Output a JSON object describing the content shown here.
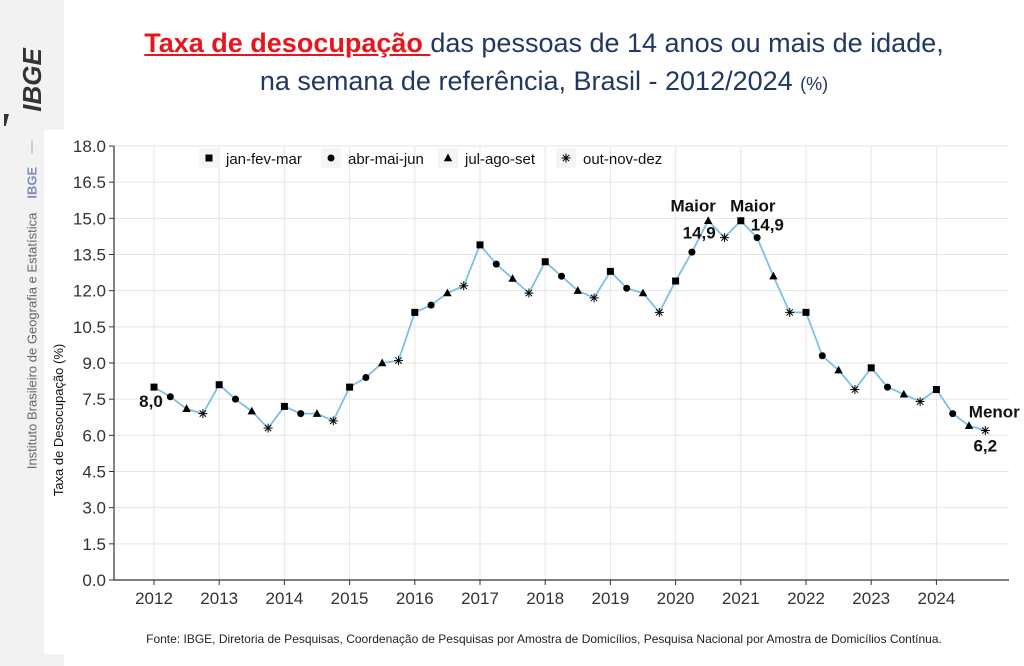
{
  "sidebar": {
    "logo_text": "IBGE",
    "institute_name": "Instituto Brasileiro de Geografia e Estatística",
    "institute_short": "IBGE"
  },
  "title": {
    "highlight": "Taxa de desocupação ",
    "line1_rest": "das pessoas de 14 anos ou mais de idade,",
    "line2": "na semana de referência, Brasil - 2012/2024",
    "unit": "(%)"
  },
  "footer": "Fonte: IBGE, Diretoria de Pesquisas, Coordenação de Pesquisas por Amostra de Domicílios, Pesquisa Nacional por Amostra de Domicílios Contínua.",
  "colors": {
    "line": "#7cc0e6",
    "title": "#1f3864",
    "highlight": "#e8151c",
    "grid": "#e5e5e5"
  },
  "chart_data": {
    "type": "line",
    "title": "",
    "xlabel": "",
    "ylabel": "Taxa de Desocupação (%)",
    "ylim": [
      0,
      18
    ],
    "yticks": [
      "0.0",
      "1.5",
      "3.0",
      "4.5",
      "6.0",
      "7.5",
      "9.0",
      "10.5",
      "12.0",
      "13.5",
      "15.0",
      "16.5",
      "18.0"
    ],
    "xticks": [
      "2012",
      "2013",
      "2014",
      "2015",
      "2016",
      "2017",
      "2018",
      "2019",
      "2020",
      "2021",
      "2022",
      "2023",
      "2024"
    ],
    "grid": true,
    "legend_position": "top-left",
    "legend": [
      {
        "name": "jan-fev-mar",
        "marker": "square"
      },
      {
        "name": "abr-mai-jun",
        "marker": "circle"
      },
      {
        "name": "jul-ago-set",
        "marker": "triangle"
      },
      {
        "name": "out-nov-dez",
        "marker": "asterisk"
      }
    ],
    "points": [
      {
        "x": "2012 T1",
        "y": 8.0
      },
      {
        "x": "2012 T2",
        "y": 7.6
      },
      {
        "x": "2012 T3",
        "y": 7.1
      },
      {
        "x": "2012 T4",
        "y": 6.9
      },
      {
        "x": "2013 T1",
        "y": 8.1
      },
      {
        "x": "2013 T2",
        "y": 7.5
      },
      {
        "x": "2013 T3",
        "y": 7.0
      },
      {
        "x": "2013 T4",
        "y": 6.3
      },
      {
        "x": "2014 T1",
        "y": 7.2
      },
      {
        "x": "2014 T2",
        "y": 6.9
      },
      {
        "x": "2014 T3",
        "y": 6.9
      },
      {
        "x": "2014 T4",
        "y": 6.6
      },
      {
        "x": "2015 T1",
        "y": 8.0
      },
      {
        "x": "2015 T2",
        "y": 8.4
      },
      {
        "x": "2015 T3",
        "y": 9.0
      },
      {
        "x": "2015 T4",
        "y": 9.1
      },
      {
        "x": "2016 T1",
        "y": 11.1
      },
      {
        "x": "2016 T2",
        "y": 11.4
      },
      {
        "x": "2016 T3",
        "y": 11.9
      },
      {
        "x": "2016 T4",
        "y": 12.2
      },
      {
        "x": "2017 T1",
        "y": 13.9
      },
      {
        "x": "2017 T2",
        "y": 13.1
      },
      {
        "x": "2017 T3",
        "y": 12.5
      },
      {
        "x": "2017 T4",
        "y": 11.9
      },
      {
        "x": "2018 T1",
        "y": 13.2
      },
      {
        "x": "2018 T2",
        "y": 12.6
      },
      {
        "x": "2018 T3",
        "y": 12.0
      },
      {
        "x": "2018 T4",
        "y": 11.7
      },
      {
        "x": "2019 T1",
        "y": 12.8
      },
      {
        "x": "2019 T2",
        "y": 12.1
      },
      {
        "x": "2019 T3",
        "y": 11.9
      },
      {
        "x": "2019 T4",
        "y": 11.1
      },
      {
        "x": "2020 T1",
        "y": 12.4
      },
      {
        "x": "2020 T2",
        "y": 13.6
      },
      {
        "x": "2020 T3",
        "y": 14.9
      },
      {
        "x": "2020 T4",
        "y": 14.2
      },
      {
        "x": "2021 T1",
        "y": 14.9
      },
      {
        "x": "2021 T2",
        "y": 14.2
      },
      {
        "x": "2021 T3",
        "y": 12.6
      },
      {
        "x": "2021 T4",
        "y": 11.1
      },
      {
        "x": "2022 T1",
        "y": 11.1
      },
      {
        "x": "2022 T2",
        "y": 9.3
      },
      {
        "x": "2022 T3",
        "y": 8.7
      },
      {
        "x": "2022 T4",
        "y": 7.9
      },
      {
        "x": "2023 T1",
        "y": 8.8
      },
      {
        "x": "2023 T2",
        "y": 8.0
      },
      {
        "x": "2023 T3",
        "y": 7.7
      },
      {
        "x": "2023 T4",
        "y": 7.4
      },
      {
        "x": "2024 T1",
        "y": 7.9
      },
      {
        "x": "2024 T2",
        "y": 6.9
      },
      {
        "x": "2024 T3",
        "y": 6.4
      },
      {
        "x": "2024 T4",
        "y": 6.2
      }
    ],
    "annotations": [
      {
        "label": "Maior",
        "value": "14,9",
        "x": "2020 T3"
      },
      {
        "label": "Maior",
        "value": "14,9",
        "x": "2021 T1"
      },
      {
        "label": "Menor",
        "value": "6,2",
        "x": "2024 T4"
      },
      {
        "label": "",
        "value": "8,0",
        "x": "2012 T1"
      }
    ]
  }
}
